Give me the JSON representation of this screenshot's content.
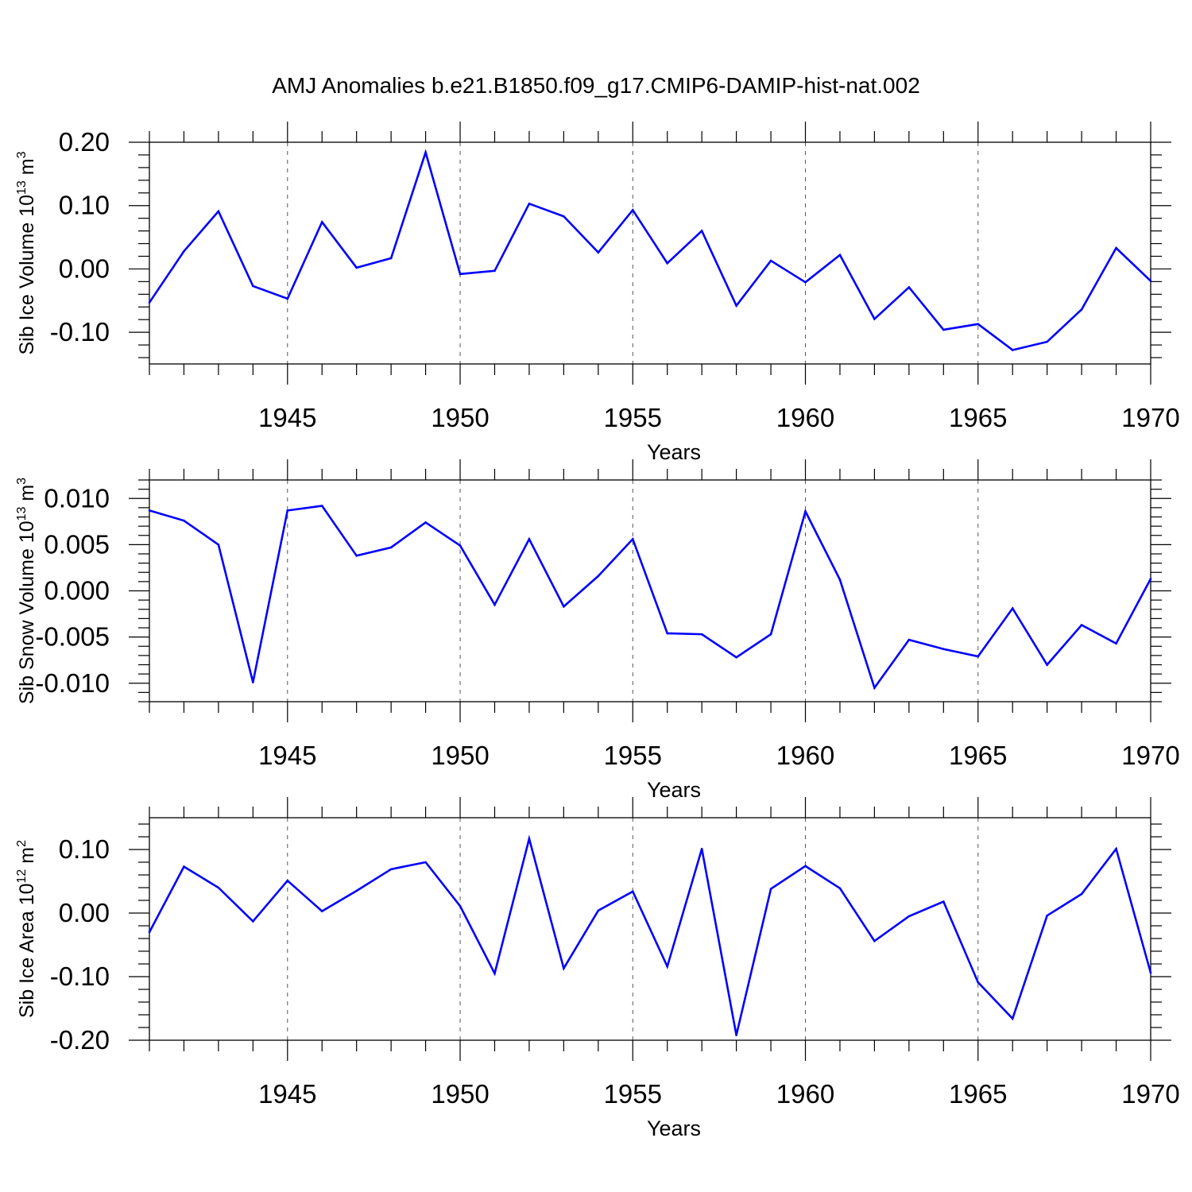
{
  "title": "AMJ Anomalies b.e21.B1850.f09_g17.CMIP6-DAMIP-hist-nat.002",
  "colors": {
    "line": "#0000ff",
    "axes": "#000000",
    "grid": "#555555"
  },
  "chart_data": [
    {
      "type": "line",
      "ylabel": "Sib Ice Volume 10",
      "ylabel_exp": "13",
      "ylabel_unit": " m",
      "ylabel_unit_exp": "3",
      "xlabel": "Years",
      "xlim": [
        1941,
        1970
      ],
      "ylim": [
        -0.15,
        0.2
      ],
      "yticks": [
        -0.1,
        0.0,
        0.1,
        0.2
      ],
      "yticklabels": [
        "-0.10",
        "0.00",
        "0.10",
        "0.20"
      ],
      "yminor": 0.02,
      "xticks": [
        1945,
        1950,
        1955,
        1960,
        1965,
        1970
      ],
      "xticklabels": [
        "1945",
        "1950",
        "1955",
        "1960",
        "1965",
        "1970"
      ],
      "grid": "x-dashed",
      "x": [
        1941,
        1942,
        1943,
        1944,
        1945,
        1946,
        1947,
        1948,
        1949,
        1950,
        1951,
        1952,
        1953,
        1954,
        1955,
        1956,
        1957,
        1958,
        1959,
        1960,
        1961,
        1962,
        1963,
        1964,
        1965,
        1966,
        1967,
        1968,
        1969,
        1970
      ],
      "series": [
        {
          "values": [
            -0.053,
            0.028,
            0.091,
            -0.027,
            -0.047,
            0.074,
            0.002,
            0.017,
            0.184,
            -0.008,
            -0.003,
            0.103,
            0.083,
            0.026,
            0.093,
            0.009,
            0.06,
            -0.058,
            0.013,
            -0.021,
            0.022,
            -0.079,
            -0.029,
            -0.096,
            -0.087,
            -0.128,
            -0.115,
            -0.064,
            0.033,
            -0.019
          ]
        }
      ]
    },
    {
      "type": "line",
      "ylabel": "Sib Snow Volume 10",
      "ylabel_exp": "13",
      "ylabel_unit": " m",
      "ylabel_unit_exp": "3",
      "xlabel": "Years",
      "xlim": [
        1941,
        1970
      ],
      "ylim": [
        -0.012,
        0.012
      ],
      "yticks": [
        -0.01,
        -0.005,
        0.0,
        0.005,
        0.01
      ],
      "yticklabels": [
        "-0.010",
        "-0.005",
        "0.000",
        "0.005",
        "0.010"
      ],
      "yminor": 0.001,
      "xticks": [
        1945,
        1950,
        1955,
        1960,
        1965,
        1970
      ],
      "xticklabels": [
        "1945",
        "1950",
        "1955",
        "1960",
        "1965",
        "1970"
      ],
      "grid": "x-dashed",
      "x": [
        1941,
        1942,
        1943,
        1944,
        1945,
        1946,
        1947,
        1948,
        1949,
        1950,
        1951,
        1952,
        1953,
        1954,
        1955,
        1956,
        1957,
        1958,
        1959,
        1960,
        1961,
        1962,
        1963,
        1964,
        1965,
        1966,
        1967,
        1968,
        1969,
        1970
      ],
      "series": [
        {
          "values": [
            0.0087,
            0.0076,
            0.005,
            -0.0099,
            0.0087,
            0.0092,
            0.0038,
            0.0047,
            0.0074,
            0.0049,
            -0.0015,
            0.0056,
            -0.0017,
            0.0016,
            0.0056,
            -0.0046,
            -0.0047,
            -0.0072,
            -0.0047,
            0.0086,
            0.0012,
            -0.0105,
            -0.0053,
            -0.0063,
            -0.0071,
            -0.0019,
            -0.008,
            -0.0037,
            -0.0057,
            0.0013
          ]
        }
      ]
    },
    {
      "type": "line",
      "ylabel": "Sib Ice Area 10",
      "ylabel_exp": "12",
      "ylabel_unit": " m",
      "ylabel_unit_exp": "2",
      "xlabel": "Years",
      "xlim": [
        1941,
        1970
      ],
      "ylim": [
        -0.2,
        0.15
      ],
      "yticks": [
        -0.2,
        -0.1,
        0.0,
        0.1
      ],
      "yticklabels": [
        "-0.20",
        "-0.10",
        "0.00",
        "0.10"
      ],
      "yminor": 0.02,
      "xticks": [
        1945,
        1950,
        1955,
        1960,
        1965,
        1970
      ],
      "xticklabels": [
        "1945",
        "1950",
        "1955",
        "1960",
        "1965",
        "1970"
      ],
      "grid": "x-dashed",
      "x": [
        1941,
        1942,
        1943,
        1944,
        1945,
        1946,
        1947,
        1948,
        1949,
        1950,
        1951,
        1952,
        1953,
        1954,
        1955,
        1956,
        1957,
        1958,
        1959,
        1960,
        1961,
        1962,
        1963,
        1964,
        1965,
        1966,
        1967,
        1968,
        1969,
        1970
      ],
      "series": [
        {
          "values": [
            -0.03,
            0.073,
            0.04,
            -0.013,
            0.051,
            0.003,
            0.035,
            0.069,
            0.08,
            0.011,
            -0.095,
            0.117,
            -0.087,
            0.004,
            0.034,
            -0.084,
            0.101,
            -0.192,
            0.038,
            0.074,
            0.039,
            -0.044,
            -0.005,
            0.018,
            -0.109,
            -0.166,
            -0.004,
            0.03,
            0.101,
            -0.094
          ]
        }
      ]
    }
  ]
}
